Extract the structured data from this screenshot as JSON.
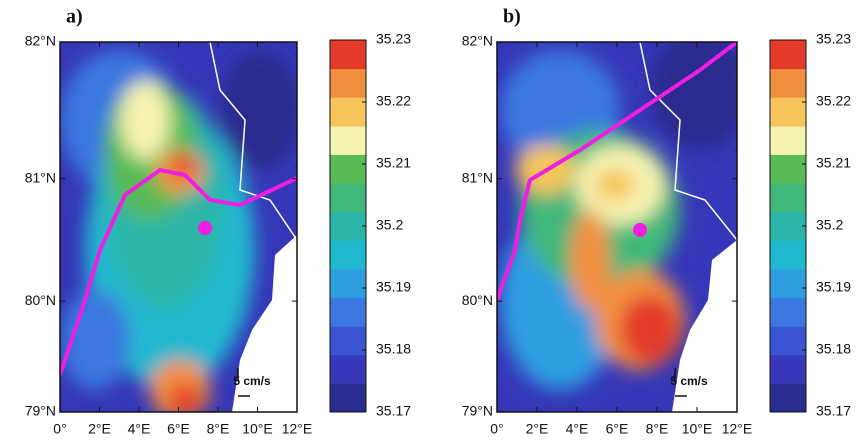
{
  "panels": [
    {
      "label": "a)",
      "xlim": [
        0,
        12
      ],
      "ylim": [
        79,
        82
      ],
      "xticks": [
        {
          "value": 0,
          "label": "0°"
        },
        {
          "value": 2,
          "label": "2°E"
        },
        {
          "value": 4,
          "label": "4°E"
        },
        {
          "value": 6,
          "label": "6°E"
        },
        {
          "value": 8,
          "label": "8°E"
        },
        {
          "value": 10,
          "label": "10°E"
        },
        {
          "value": 12,
          "label": "12°E"
        }
      ],
      "yticks": [
        {
          "value": 79,
          "label": "79°N"
        },
        {
          "value": 80,
          "label": "80°N"
        },
        {
          "value": 81,
          "label": "81°N"
        },
        {
          "value": 82,
          "label": "82°N"
        }
      ],
      "scale_label": "5 cm/s",
      "colorbar": {
        "clim": [
          35.17,
          35.23
        ],
        "ticks": [
          35.17,
          35.18,
          35.19,
          35.2,
          35.21,
          35.22,
          35.23
        ],
        "colors": [
          "#2b2c8f",
          "#3537b8",
          "#3a55d2",
          "#3b78e0",
          "#2f9ee0",
          "#20b8cf",
          "#2bb5a8",
          "#3fb87a",
          "#58bb55",
          "#f6f3b0",
          "#f7c55c",
          "#f39040",
          "#e33a2a"
        ]
      }
    },
    {
      "label": "b)",
      "xlim": [
        0,
        12
      ],
      "ylim": [
        79,
        82
      ],
      "xticks": [
        {
          "value": 0,
          "label": "0°"
        },
        {
          "value": 2,
          "label": "2°E"
        },
        {
          "value": 4,
          "label": "4°E"
        },
        {
          "value": 6,
          "label": "6°E"
        },
        {
          "value": 8,
          "label": "8°E"
        },
        {
          "value": 10,
          "label": "10°E"
        },
        {
          "value": 12,
          "label": "12°E"
        }
      ],
      "yticks": [
        {
          "value": 79,
          "label": "79°N"
        },
        {
          "value": 80,
          "label": "80°N"
        },
        {
          "value": 81,
          "label": "81°N"
        },
        {
          "value": 82,
          "label": "82°N"
        }
      ],
      "scale_label": "5 cm/s",
      "colorbar": {
        "clim": [
          35.17,
          35.23
        ],
        "ticks": [
          35.17,
          35.18,
          35.19,
          35.2,
          35.21,
          35.22,
          35.23
        ],
        "colors": [
          "#2b2c8f",
          "#3537b8",
          "#3a55d2",
          "#3b78e0",
          "#2f9ee0",
          "#20b8cf",
          "#2bb5a8",
          "#3fb87a",
          "#58bb55",
          "#f6f3b0",
          "#f7c55c",
          "#f39040",
          "#e33a2a"
        ]
      }
    }
  ]
}
